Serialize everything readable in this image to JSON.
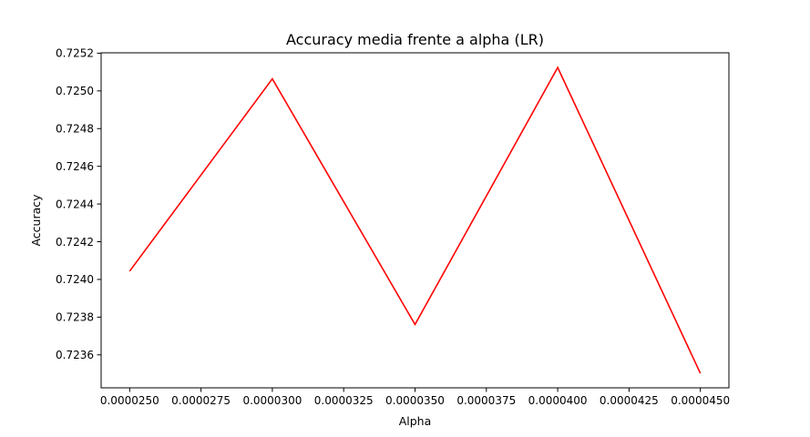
{
  "chart_data": {
    "type": "line",
    "title": "Accuracy media frente a alpha (LR)",
    "xlabel": "Alpha",
    "ylabel": "Accuracy",
    "x": [
      2.5e-05,
      3e-05,
      3.5e-05,
      4e-05,
      4.5e-05
    ],
    "series": [
      {
        "values": [
          0.724044,
          0.725064,
          0.723761,
          0.725124,
          0.723502
        ],
        "color": "#ff0000"
      }
    ],
    "xlim": [
      2.4e-05,
      4.6e-05
    ],
    "ylim": [
      0.723425,
      0.725202
    ],
    "xticks": [
      2.5e-05,
      2.75e-05,
      3e-05,
      3.25e-05,
      3.5e-05,
      3.75e-05,
      4e-05,
      4.25e-05,
      4.5e-05
    ],
    "xtick_labels": [
      "0.0000250",
      "0.0000275",
      "0.0000300",
      "0.0000325",
      "0.0000350",
      "0.0000375",
      "0.0000400",
      "0.0000425",
      "0.0000450"
    ],
    "yticks": [
      0.7236,
      0.7238,
      0.724,
      0.7242,
      0.7244,
      0.7246,
      0.7248,
      0.725,
      0.7252
    ],
    "ytick_labels": [
      "0.7236",
      "0.7238",
      "0.7240",
      "0.7242",
      "0.7244",
      "0.7246",
      "0.7248",
      "0.7250",
      "0.7252"
    ],
    "grid": false
  }
}
